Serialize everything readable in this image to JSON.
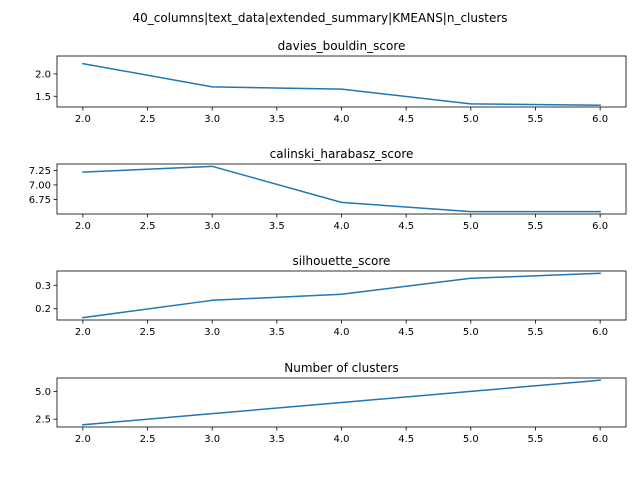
{
  "figure": {
    "suptitle": "40_columns|text_data|extended_summary|KMEANS|n_clusters"
  },
  "chart_data": [
    {
      "type": "line",
      "title": "davies_bouldin_score",
      "xlabel": "",
      "ylabel": "",
      "x": [
        2.0,
        3.0,
        4.0,
        5.0,
        6.0
      ],
      "series": [
        {
          "values": [
            2.23,
            1.71,
            1.66,
            1.33,
            1.3
          ]
        }
      ],
      "xlim": [
        1.8,
        6.2
      ],
      "ylim": [
        1.26,
        2.4
      ],
      "xticks": [
        2.0,
        2.5,
        3.0,
        3.5,
        4.0,
        4.5,
        5.0,
        5.5,
        6.0
      ],
      "xtick_labels": [
        "2.0",
        "2.5",
        "3.0",
        "3.5",
        "4.0",
        "4.5",
        "5.0",
        "5.5",
        "6.0"
      ],
      "yticks": [
        1.5,
        2.0
      ],
      "ytick_labels": [
        "1.5",
        "2.0"
      ],
      "color": "#1f77b4",
      "grid": false
    },
    {
      "type": "line",
      "title": "calinski_harabasz_score",
      "xlabel": "",
      "ylabel": "",
      "x": [
        2.0,
        3.0,
        4.0,
        5.0,
        6.0
      ],
      "series": [
        {
          "values": [
            7.22,
            7.32,
            6.7,
            6.54,
            6.54
          ]
        }
      ],
      "xlim": [
        1.8,
        6.2
      ],
      "ylim": [
        6.5,
        7.36
      ],
      "xticks": [
        2.0,
        2.5,
        3.0,
        3.5,
        4.0,
        4.5,
        5.0,
        5.5,
        6.0
      ],
      "xtick_labels": [
        "2.0",
        "2.5",
        "3.0",
        "3.5",
        "4.0",
        "4.5",
        "5.0",
        "5.5",
        "6.0"
      ],
      "yticks": [
        6.75,
        7.0,
        7.25
      ],
      "ytick_labels": [
        "6.75",
        "7.00",
        "7.25"
      ],
      "color": "#1f77b4",
      "grid": false
    },
    {
      "type": "line",
      "title": "silhouette_score",
      "xlabel": "",
      "ylabel": "",
      "x": [
        2.0,
        3.0,
        4.0,
        5.0,
        6.0
      ],
      "series": [
        {
          "values": [
            0.162,
            0.236,
            0.262,
            0.33,
            0.351
          ]
        }
      ],
      "xlim": [
        1.8,
        6.2
      ],
      "ylim": [
        0.152,
        0.361
      ],
      "xticks": [
        2.0,
        2.5,
        3.0,
        3.5,
        4.0,
        4.5,
        5.0,
        5.5,
        6.0
      ],
      "xtick_labels": [
        "2.0",
        "2.5",
        "3.0",
        "3.5",
        "4.0",
        "4.5",
        "5.0",
        "5.5",
        "6.0"
      ],
      "yticks": [
        0.2,
        0.3
      ],
      "ytick_labels": [
        "0.2",
        "0.3"
      ],
      "color": "#1f77b4",
      "grid": false
    },
    {
      "type": "line",
      "title": "Number of clusters",
      "xlabel": "",
      "ylabel": "",
      "x": [
        2.0,
        3.0,
        4.0,
        5.0,
        6.0
      ],
      "series": [
        {
          "values": [
            2,
            3,
            4,
            5,
            6
          ]
        }
      ],
      "xlim": [
        1.8,
        6.2
      ],
      "ylim": [
        1.8,
        6.2
      ],
      "xticks": [
        2.0,
        2.5,
        3.0,
        3.5,
        4.0,
        4.5,
        5.0,
        5.5,
        6.0
      ],
      "xtick_labels": [
        "2.0",
        "2.5",
        "3.0",
        "3.5",
        "4.0",
        "4.5",
        "5.0",
        "5.5",
        "6.0"
      ],
      "yticks": [
        2.5,
        5.0
      ],
      "ytick_labels": [
        "2.5",
        "5.0"
      ],
      "color": "#1f77b4",
      "grid": false
    }
  ]
}
